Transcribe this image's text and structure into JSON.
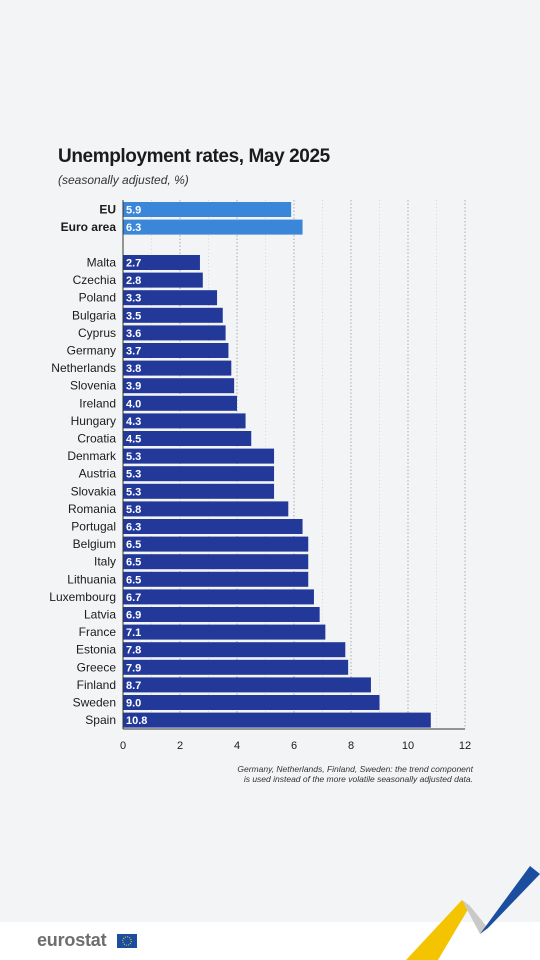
{
  "header": {
    "title": "Unemployment rates, May 2025",
    "subtitle": "(seasonally adjusted, %)"
  },
  "footnote_lines": [
    "Germany, Netherlands, Finland, Sweden: the trend component",
    "is used instead of the more volatile seasonally adjusted data."
  ],
  "brand": {
    "name": "eurostat"
  },
  "colors": {
    "aggregate_bar": "#3a86d8",
    "country_bar": "#22399a",
    "background": "#f3f4f5"
  },
  "chart_data": {
    "type": "bar",
    "orientation": "horizontal",
    "title": "Unemployment rates, May 2025",
    "subtitle": "(seasonally adjusted, %)",
    "xlim": [
      0,
      12
    ],
    "xticks": [
      0,
      2,
      4,
      6,
      8,
      10,
      12
    ],
    "grid": "vertical dotted",
    "aggregates": [
      {
        "label": "EU",
        "value": 5.9
      },
      {
        "label": "Euro area",
        "value": 6.3
      }
    ],
    "countries": [
      {
        "label": "Malta",
        "value": 2.7
      },
      {
        "label": "Czechia",
        "value": 2.8
      },
      {
        "label": "Poland",
        "value": 3.3
      },
      {
        "label": "Bulgaria",
        "value": 3.5
      },
      {
        "label": "Cyprus",
        "value": 3.6
      },
      {
        "label": "Germany",
        "value": 3.7
      },
      {
        "label": "Netherlands",
        "value": 3.8
      },
      {
        "label": "Slovenia",
        "value": 3.9
      },
      {
        "label": "Ireland",
        "value": 4.0
      },
      {
        "label": "Hungary",
        "value": 4.3
      },
      {
        "label": "Croatia",
        "value": 4.5
      },
      {
        "label": "Denmark",
        "value": 5.3
      },
      {
        "label": "Austria",
        "value": 5.3
      },
      {
        "label": "Slovakia",
        "value": 5.3
      },
      {
        "label": "Romania",
        "value": 5.8
      },
      {
        "label": "Portugal",
        "value": 6.3
      },
      {
        "label": "Belgium",
        "value": 6.5
      },
      {
        "label": "Italy",
        "value": 6.5
      },
      {
        "label": "Lithuania",
        "value": 6.5
      },
      {
        "label": "Luxembourg",
        "value": 6.7
      },
      {
        "label": "Latvia",
        "value": 6.9
      },
      {
        "label": "France",
        "value": 7.1
      },
      {
        "label": "Estonia",
        "value": 7.8
      },
      {
        "label": "Greece",
        "value": 7.9
      },
      {
        "label": "Finland",
        "value": 8.7
      },
      {
        "label": "Sweden",
        "value": 9.0
      },
      {
        "label": "Spain",
        "value": 10.8
      }
    ]
  }
}
